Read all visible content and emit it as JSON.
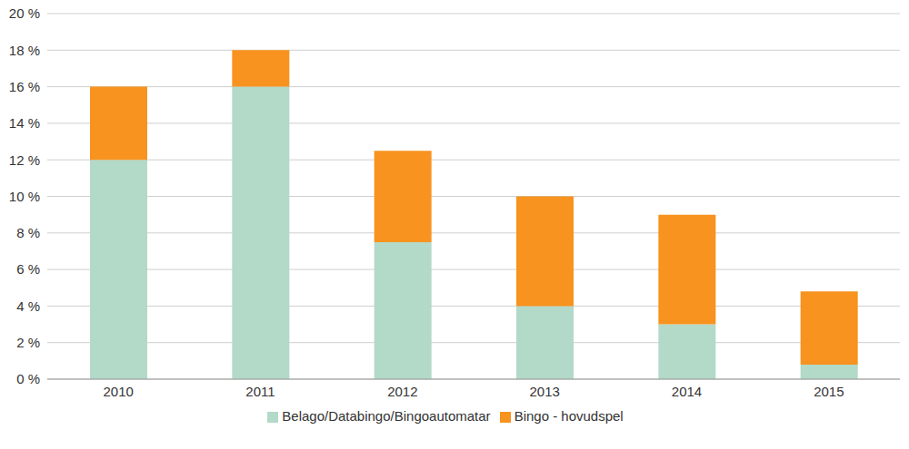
{
  "chart_data": {
    "type": "bar",
    "stacked": true,
    "grid": true,
    "legend": "bottom",
    "categories": [
      "2010",
      "2011",
      "2012",
      "2013",
      "2014",
      "2015"
    ],
    "series": [
      {
        "name": "Belago/Databingo/Bingoautomatar",
        "color": "#b3d9c8",
        "values": [
          12,
          16,
          7.5,
          4,
          3,
          0.8
        ]
      },
      {
        "name": "Bingo - hovudspel",
        "color": "#f7931e",
        "values": [
          4,
          2,
          5,
          6,
          6,
          4
        ]
      }
    ],
    "ylim": [
      0,
      20
    ],
    "yticks": [
      {
        "value": 0,
        "label": "0 %"
      },
      {
        "value": 2,
        "label": "2 %"
      },
      {
        "value": 4,
        "label": "4 %"
      },
      {
        "value": 6,
        "label": "6 %"
      },
      {
        "value": 8,
        "label": "8 %"
      },
      {
        "value": 10,
        "label": "10 %"
      },
      {
        "value": 12,
        "label": "12 %"
      },
      {
        "value": 14,
        "label": "14 %"
      },
      {
        "value": 16,
        "label": "16 %"
      },
      {
        "value": 18,
        "label": "18 %"
      },
      {
        "value": 20,
        "label": "20 %"
      }
    ]
  }
}
